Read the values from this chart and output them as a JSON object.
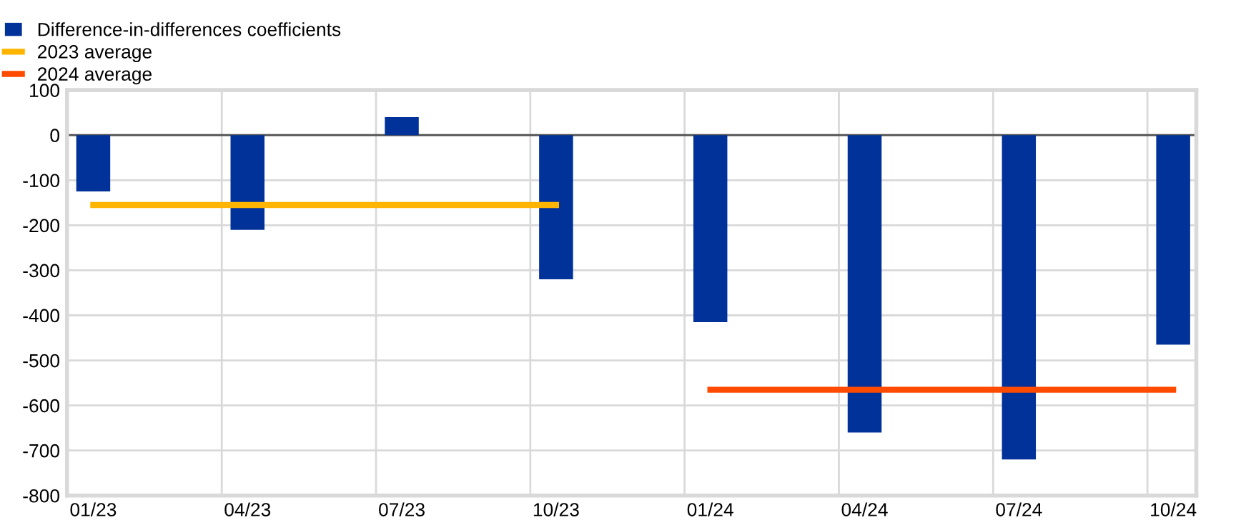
{
  "chart_data": {
    "type": "bar",
    "categories": [
      "01/23",
      "04/23",
      "07/23",
      "10/23",
      "01/24",
      "04/24",
      "07/24",
      "10/24"
    ],
    "series": [
      {
        "name": "Difference-in-differences coefficients",
        "color": "#003299",
        "values": [
          -125,
          -210,
          40,
          -320,
          -415,
          -660,
          -720,
          -465
        ]
      },
      {
        "name": "2023 average",
        "type": "line",
        "color": "#ffb400",
        "values": [
          -155,
          -155,
          -155,
          -155,
          null,
          null,
          null,
          null
        ]
      },
      {
        "name": "2024 average",
        "type": "line",
        "color": "#ff4b00",
        "values": [
          null,
          null,
          null,
          null,
          -565,
          -565,
          -565,
          -565
        ]
      }
    ],
    "ylim": [
      -800,
      100
    ],
    "yticks": [
      -800,
      -700,
      -600,
      -500,
      -400,
      -300,
      -200,
      -100,
      0,
      100
    ],
    "grid": true,
    "legend": "top left",
    "marker": "none",
    "line_style": "solid"
  }
}
